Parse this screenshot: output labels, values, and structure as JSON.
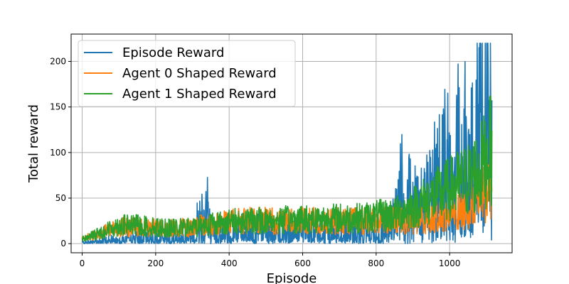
{
  "chart_data": {
    "type": "line",
    "title": "",
    "xlabel": "Episode",
    "ylabel": "Total reward",
    "xlim": [
      -30,
      1170
    ],
    "ylim": [
      -10,
      230
    ],
    "xticks": [
      0,
      200,
      400,
      600,
      800,
      1000
    ],
    "yticks": [
      0,
      50,
      100,
      150,
      200
    ],
    "grid": true,
    "legend_position": "top-left",
    "episodes": 1115,
    "series": [
      {
        "name": "Episode Reward",
        "color": "#1f77b4",
        "x": [
          0,
          50,
          100,
          150,
          200,
          250,
          300,
          340,
          350,
          400,
          450,
          500,
          550,
          600,
          650,
          700,
          750,
          800,
          850,
          870,
          900,
          950,
          980,
          1000,
          1030,
          1050,
          1070,
          1080,
          1090,
          1100,
          1110,
          1115
        ],
        "values": [
          2,
          5,
          8,
          10,
          10,
          10,
          20,
          60,
          18,
          20,
          25,
          22,
          20,
          25,
          20,
          20,
          20,
          15,
          40,
          100,
          60,
          80,
          150,
          120,
          160,
          140,
          120,
          220,
          200,
          200,
          180,
          200
        ]
      },
      {
        "name": "Agent 0 Shaped Reward",
        "color": "#ff7f0e",
        "x": [
          0,
          50,
          100,
          150,
          200,
          250,
          300,
          350,
          400,
          450,
          500,
          550,
          600,
          650,
          700,
          750,
          800,
          850,
          900,
          950,
          1000,
          1050,
          1080,
          1100,
          1115
        ],
        "values": [
          5,
          12,
          18,
          18,
          17,
          17,
          18,
          22,
          24,
          25,
          25,
          25,
          25,
          25,
          25,
          25,
          25,
          25,
          25,
          28,
          30,
          40,
          50,
          55,
          60
        ]
      },
      {
        "name": "Agent 1 Shaped Reward",
        "color": "#2ca02c",
        "x": [
          0,
          50,
          100,
          150,
          200,
          250,
          300,
          350,
          400,
          450,
          500,
          550,
          600,
          650,
          700,
          750,
          800,
          850,
          900,
          950,
          1000,
          1050,
          1080,
          1100,
          1115
        ],
        "values": [
          5,
          12,
          20,
          20,
          18,
          17,
          18,
          22,
          24,
          25,
          25,
          26,
          27,
          27,
          28,
          28,
          30,
          32,
          40,
          50,
          60,
          70,
          80,
          95,
          105
        ]
      }
    ]
  }
}
